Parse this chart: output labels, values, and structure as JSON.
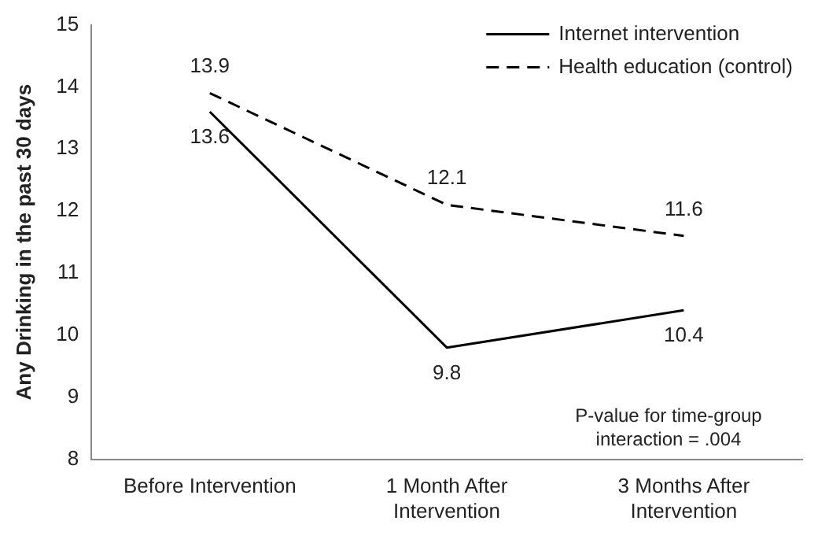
{
  "chart_data": {
    "type": "line",
    "ylabel": "Any Drinking in the past 30 days",
    "categories": [
      "Before Intervention",
      "1 Month After Intervention",
      "3 Months After Intervention"
    ],
    "series": [
      {
        "name": "Internet intervention",
        "color": "#000000",
        "line_style": "solid",
        "values": [
          13.6,
          9.8,
          10.4
        ]
      },
      {
        "name": "Health education (control)",
        "color": "#000000",
        "line_style": "dashed",
        "values": [
          13.9,
          12.1,
          11.6
        ]
      }
    ],
    "ylim": [
      8,
      15
    ],
    "yticks": [
      8,
      9,
      10,
      11,
      12,
      13,
      14,
      15
    ],
    "grid": false,
    "legend": "top right",
    "marker": "none",
    "data_labels": true,
    "annotations": [
      "P-value for time-group interaction = .004"
    ]
  }
}
